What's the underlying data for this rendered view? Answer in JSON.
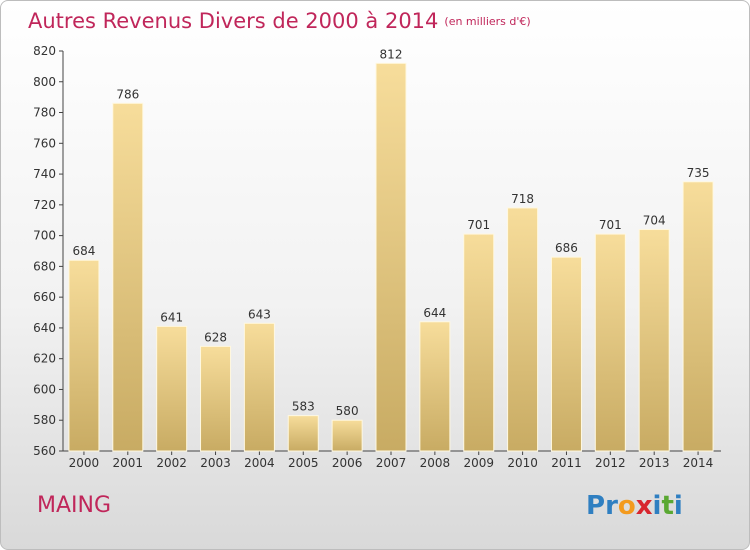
{
  "header": {
    "title": "Autres Revenus Divers de 2000 à 2014",
    "unit": "(en milliers d'€)"
  },
  "footer": {
    "city": "MAING",
    "logo": {
      "letters": [
        "P",
        "r",
        "o",
        "x",
        "i",
        "t",
        "i"
      ],
      "colors": [
        "#2f7fc1",
        "#2f7fc1",
        "#f39a1e",
        "#d8262e",
        "#2f7fc1",
        "#5aa832",
        "#2f7fc1"
      ]
    }
  },
  "chart_data": {
    "type": "bar",
    "title": "Autres Revenus Divers de 2000 à 2014",
    "categories": [
      "2000",
      "2001",
      "2002",
      "2003",
      "2004",
      "2005",
      "2006",
      "2007",
      "2008",
      "2009",
      "2010",
      "2011",
      "2012",
      "2013",
      "2014"
    ],
    "values": [
      684,
      786,
      641,
      628,
      643,
      583,
      580,
      812,
      644,
      701,
      718,
      686,
      701,
      704,
      735
    ],
    "ylim": [
      560,
      820
    ],
    "yticks": [
      560,
      580,
      600,
      620,
      640,
      660,
      680,
      700,
      720,
      740,
      760,
      780,
      800,
      820
    ],
    "grid": false,
    "bar_color_top": "#f7dd9b",
    "bar_color_bottom": "#c8ab63"
  }
}
